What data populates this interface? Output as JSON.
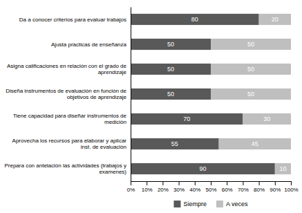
{
  "chart_data": {
    "type": "bar",
    "orientation": "horizontal",
    "stacked": true,
    "data_labels": true,
    "grid": false,
    "legend": "bottom",
    "categories": [
      "Da a conocer criterios para evaluar trabajos",
      "Ajusta practicas de enseñanza",
      "Asigna calificaciones en relación con el grado de\naprendizaje",
      "Diseña instrumentos de evaluación en función de\nobjetivos de aprendizaje",
      "Tiene capacidad para diseñar instrumentos de\nmedición",
      "Aprovecha los recursos para elaborar y aplicar\ninst. de evaluación",
      "Prepara con antelación las actividades (trabajos y\nexamenes)"
    ],
    "series": [
      {
        "name": "Siempre",
        "color": "#595959",
        "values": [
          80,
          50,
          50,
          50,
          70,
          55,
          90
        ]
      },
      {
        "name": "A veces",
        "color": "#bfbfbf",
        "values": [
          20,
          50,
          50,
          50,
          30,
          45,
          10
        ]
      }
    ],
    "xlim": [
      0,
      100
    ],
    "xticks": [
      {
        "value": 0,
        "label": "0%"
      },
      {
        "value": 10,
        "label": "10%"
      },
      {
        "value": 20,
        "label": "20%"
      },
      {
        "value": 30,
        "label": "30%"
      },
      {
        "value": 40,
        "label": "40%"
      },
      {
        "value": 50,
        "label": "50%"
      },
      {
        "value": 60,
        "label": "60%"
      },
      {
        "value": 70,
        "label": "70%"
      },
      {
        "value": 80,
        "label": "80%"
      },
      {
        "value": 90,
        "label": "90%"
      },
      {
        "value": 100,
        "label": "100%"
      }
    ]
  }
}
